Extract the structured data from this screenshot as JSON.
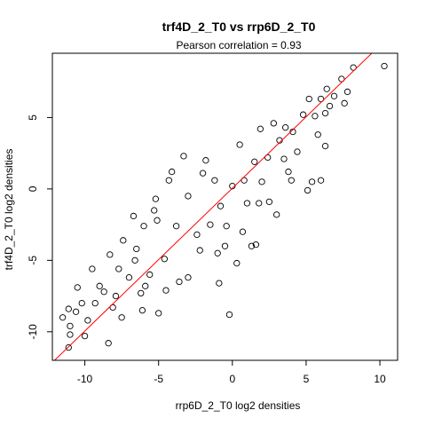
{
  "chart_data": {
    "type": "scatter",
    "title": "trf4D_2_T0 vs rrp6D_2_T0",
    "subtitle": "Pearson correlation =  0.93",
    "xlabel": "rrp6D_2_T0 log2 densities",
    "ylabel": "trf4D_2_T0 log2 densities",
    "xlim": [
      -12.2,
      11.2
    ],
    "ylim": [
      -12.0,
      9.5
    ],
    "x_ticks": [
      -10,
      -5,
      0,
      5,
      10
    ],
    "y_ticks": [
      -10,
      -5,
      0,
      5
    ],
    "grid": false,
    "marker": "open-circle",
    "point_color": "#000000",
    "fit_line": {
      "slope": 1.0,
      "intercept": 0.05,
      "color": "#ff0000"
    },
    "series": [
      {
        "points": [
          [
            10.3,
            8.6
          ],
          [
            8.2,
            8.5
          ],
          [
            7.4,
            7.7
          ],
          [
            7.8,
            6.8
          ],
          [
            6.9,
            6.5
          ],
          [
            6.4,
            7.0
          ],
          [
            7.6,
            6.0
          ],
          [
            6.0,
            6.3
          ],
          [
            6.6,
            5.8
          ],
          [
            5.2,
            6.3
          ],
          [
            6.3,
            5.3
          ],
          [
            5.6,
            5.1
          ],
          [
            5.8,
            3.8
          ],
          [
            6.3,
            3.0
          ],
          [
            6.0,
            0.6
          ],
          [
            4.4,
            2.6
          ],
          [
            3.6,
            4.3
          ],
          [
            2.8,
            4.6
          ],
          [
            4.0,
            0.6
          ],
          [
            5.1,
            -0.1
          ],
          [
            5.4,
            0.5
          ],
          [
            3.0,
            -1.8
          ],
          [
            1.8,
            -1.0
          ],
          [
            1.6,
            -3.9
          ],
          [
            0.7,
            -3.0
          ],
          [
            1.3,
            -4.0
          ],
          [
            -0.5,
            -4.0
          ],
          [
            -1.0,
            -4.5
          ],
          [
            -4.3,
            0.6
          ],
          [
            -4.1,
            1.2
          ],
          [
            -3.3,
            2.3
          ],
          [
            -5.2,
            -0.7
          ],
          [
            -5.3,
            -1.5
          ],
          [
            -5.1,
            -2.2
          ],
          [
            -3.0,
            -0.5
          ],
          [
            -2.0,
            1.1
          ],
          [
            -6.0,
            -2.6
          ],
          [
            -6.7,
            -1.9
          ],
          [
            -7.4,
            -3.6
          ],
          [
            -6.5,
            -4.2
          ],
          [
            -8.3,
            -4.6
          ],
          [
            -7.7,
            -5.6
          ],
          [
            -9.5,
            -5.6
          ],
          [
            -10.5,
            -6.9
          ],
          [
            -9.0,
            -6.8
          ],
          [
            -11.1,
            -8.4
          ],
          [
            -10.6,
            -8.6
          ],
          [
            -11.5,
            -9.0
          ],
          [
            -11.0,
            -9.6
          ],
          [
            -11.0,
            -10.2
          ],
          [
            -11.1,
            -11.1
          ],
          [
            -10.0,
            -10.3
          ],
          [
            -8.4,
            -10.8
          ],
          [
            -7.5,
            -9.0
          ],
          [
            -6.1,
            -8.5
          ],
          [
            -5.0,
            -8.7
          ],
          [
            -4.5,
            -7.1
          ],
          [
            -3.6,
            -6.5
          ],
          [
            -0.2,
            -8.8
          ],
          [
            -3.0,
            -6.2
          ],
          [
            -8.7,
            -7.2
          ],
          [
            -9.3,
            -8.0
          ],
          [
            -7.9,
            -7.5
          ],
          [
            -6.2,
            -7.3
          ],
          [
            -5.9,
            -6.8
          ],
          [
            -2.4,
            -3.2
          ],
          [
            -1.5,
            -2.5
          ],
          [
            -0.8,
            -1.2
          ],
          [
            0.0,
            0.2
          ],
          [
            0.8,
            0.6
          ],
          [
            1.5,
            1.9
          ],
          [
            2.4,
            2.2
          ],
          [
            3.2,
            3.4
          ],
          [
            4.1,
            4.0
          ],
          [
            4.8,
            5.2
          ],
          [
            -1.2,
            0.6
          ],
          [
            1.0,
            -1.0
          ],
          [
            2.0,
            0.5
          ],
          [
            3.5,
            2.1
          ],
          [
            -3.8,
            -2.6
          ],
          [
            -2.2,
            -4.3
          ],
          [
            -4.6,
            -4.9
          ],
          [
            0.5,
            3.1
          ],
          [
            1.9,
            4.2
          ],
          [
            -1.8,
            2.0
          ],
          [
            2.5,
            -0.9
          ],
          [
            3.8,
            1.2
          ],
          [
            -0.4,
            -2.6
          ],
          [
            -5.6,
            -6.0
          ],
          [
            -7.0,
            -6.2
          ],
          [
            -8.1,
            -8.3
          ],
          [
            -9.8,
            -9.2
          ],
          [
            -10.2,
            -8.0
          ],
          [
            -6.6,
            -5.0
          ],
          [
            0.3,
            -5.2
          ],
          [
            -0.9,
            -6.6
          ]
        ]
      }
    ]
  }
}
